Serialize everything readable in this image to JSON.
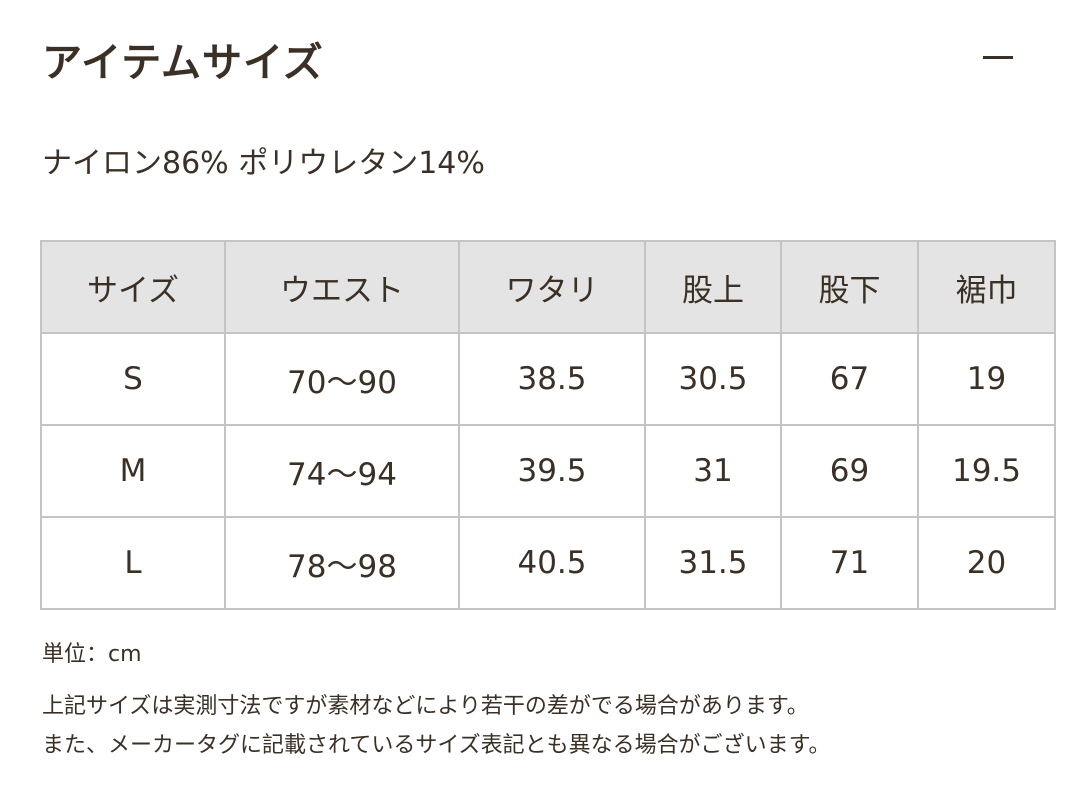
{
  "header": {
    "title": "アイテムサイズ"
  },
  "material": "ナイロン86% ポリウレタン14%",
  "table": {
    "columns": [
      "サイズ",
      "ウエスト",
      "ワタリ",
      "股上",
      "股下",
      "裾巾"
    ],
    "rows": [
      [
        "S",
        "70〜90",
        "38.5",
        "30.5",
        "67",
        "19"
      ],
      [
        "M",
        "74〜94",
        "39.5",
        "31",
        "69",
        "19.5"
      ],
      [
        "L",
        "78〜98",
        "40.5",
        "31.5",
        "71",
        "20"
      ]
    ]
  },
  "notes": [
    "単位：cm",
    "上記サイズは実測寸法ですが素材などにより若干の差がでる場合があります。",
    "また、メーカータグに記載されているサイズ表記とも異なる場合がございます。"
  ]
}
